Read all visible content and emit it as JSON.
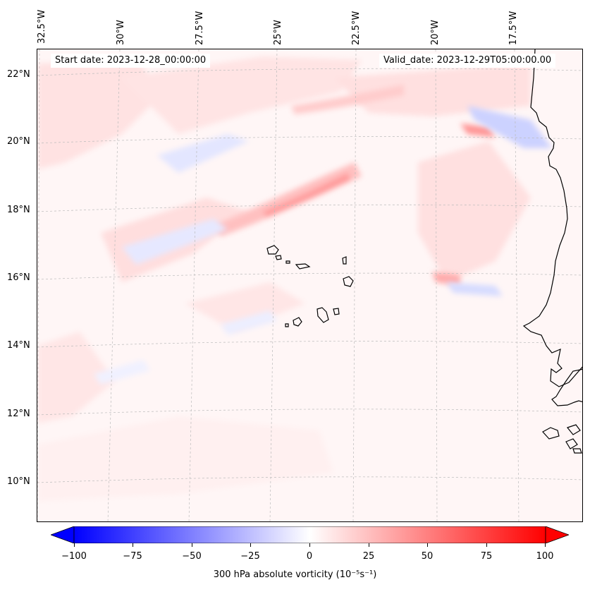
{
  "map": {
    "start_date": "Start date: 2023-12-28_00:00:00",
    "valid_date": "Valid_date: 2023-12-29T05:00:00.00",
    "lon_labels": [
      "32.5°W",
      "30°W",
      "27.5°W",
      "25°W",
      "22.5°W",
      "20°W",
      "17.5°W"
    ],
    "lat_labels": [
      "22°N",
      "20°N",
      "18°N",
      "16°N",
      "14°N",
      "12°N",
      "10°N"
    ],
    "field": "300 hPa absolute vorticity",
    "gridlines": true
  },
  "colorbar": {
    "label": "300 hPa absolute vorticity (10⁻⁵s⁻¹)",
    "ticks": [
      "−100",
      "−75",
      "−50",
      "−25",
      "0",
      "25",
      "50",
      "75",
      "100"
    ],
    "range": [
      -100,
      100
    ],
    "colormap": "bwr",
    "color_min": "#0000ff",
    "color_mid": "#ffffff",
    "color_max": "#ff0000",
    "extend": "both"
  }
}
